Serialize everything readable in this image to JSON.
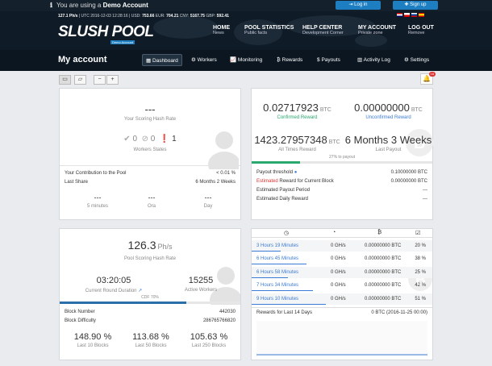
{
  "topbar": {
    "demo_text": "You are using a ",
    "demo_bold": "Demo Account",
    "login": "Log in",
    "signup": "Sign up"
  },
  "stats": {
    "hashrate": "127.1 Ph/s",
    "utc": "| UTC 2016-12-03 12:28:16 | USD:",
    "usd": "753.66",
    "eur_label": "EUR:",
    "eur": "704.21",
    "cny_label": "CNY:",
    "cny": "5167.75",
    "gbp_label": "GBP:",
    "gbp": "592.41"
  },
  "logo": {
    "name": "SLUSH POOL",
    "sub": "Demo Account"
  },
  "nav": [
    {
      "title": "HOME",
      "sub": "News"
    },
    {
      "title": "POOL STATISTICS",
      "sub": "Public facts"
    },
    {
      "title": "HELP CENTER",
      "sub": "Development Corner"
    },
    {
      "title": "MY ACCOUNT",
      "sub": "Private zone"
    },
    {
      "title": "LOG OUT",
      "sub": "Remove"
    }
  ],
  "page": {
    "title": "My account"
  },
  "tabs": [
    "Dashboard",
    "Workers",
    "Monitoring",
    "Rewards",
    "Payouts",
    "Activity Log",
    "Settings"
  ],
  "notif_count": "18",
  "hash_panel": {
    "value": "---",
    "label": "Your Scoring Hash Rate",
    "ok": "0",
    "off": "0",
    "warn": "1",
    "workers_label": "Workers States",
    "contribution_label": "Your Contribution to the Pool",
    "contribution": "< 0.01 %",
    "lastshare_label": "Last Share",
    "lastshare": "6 Months 2 Weeks",
    "periods": [
      {
        "v": "---",
        "l": "5 minutes"
      },
      {
        "v": "---",
        "l": "Ora"
      },
      {
        "v": "---",
        "l": "Day"
      }
    ]
  },
  "reward_panel": {
    "confirmed": "0.02717923",
    "confirmed_unit": "BTC",
    "confirmed_label": "Confirmed Reward",
    "unconfirmed": "0.00000000",
    "unconfirmed_unit": "BTC",
    "unconfirmed_label": "Unconfirmed Reward",
    "alltime": "1423.27957348",
    "alltime_unit": "BTC",
    "alltime_label": "All Times Reward",
    "lastpayout": "6 Months 3 Weeks",
    "lastpayout_label": "Last Payout",
    "progress_label": "27% to payout",
    "progress": 0.27,
    "rows": [
      {
        "l": "Payout threshold",
        "v": "0.10000000 BTC"
      },
      {
        "l": "Estimated",
        "l2": " Reward for Current Block",
        "v": "0.00000000 BTC"
      },
      {
        "l": "Estimated Payout Period",
        "v": "---"
      },
      {
        "l": "Estimated Daily Reward",
        "v": "---"
      }
    ]
  },
  "pool_panel": {
    "value": "126.3",
    "unit": "Ph/s",
    "label": "Pool Scoring Hash Rate",
    "duration": "03:20:05",
    "duration_label": "Current Round Duration",
    "workers": "15255",
    "workers_label": "Active Workers",
    "cdf": "CDF 70%",
    "cdf_progress": 0.7,
    "block_number_label": "Block Number",
    "block_number": "442030",
    "difficulty_label": "Block Difficulty",
    "difficulty": "286765766820",
    "lucks": [
      {
        "v": "148.90 %",
        "l": "Last 10 Blocks"
      },
      {
        "v": "113.68 %",
        "l": "Last 50 Blocks"
      },
      {
        "v": "105.63 %",
        "l": "Last 250 Blocks"
      }
    ]
  },
  "blocks_table": {
    "rows": [
      {
        "dur": "3 Hours 19 Minutes",
        "rate": "0 GH/s",
        "rew": "0.00000000 BTC",
        "pct": "20 %"
      },
      {
        "dur": "6 Hours 45 Minutes",
        "rate": "0 GH/s",
        "rew": "0.00000000 BTC",
        "pct": "38 %"
      },
      {
        "dur": "6 Hours 58 Minutes",
        "rate": "0 GH/s",
        "rew": "0.00000000 BTC",
        "pct": "25 %"
      },
      {
        "dur": "7 Hours 34 Minutes",
        "rate": "0 GH/s",
        "rew": "0.00000000 BTC",
        "pct": "42 %"
      },
      {
        "dur": "9 Hours 10 Minutes",
        "rate": "0 GH/s",
        "rew": "0.00000000 BTC",
        "pct": "51 %"
      }
    ],
    "rewards_label": "Rewards for Last 14 Days",
    "rewards_value": "0 BTC (2016-11-25 00:00)"
  }
}
